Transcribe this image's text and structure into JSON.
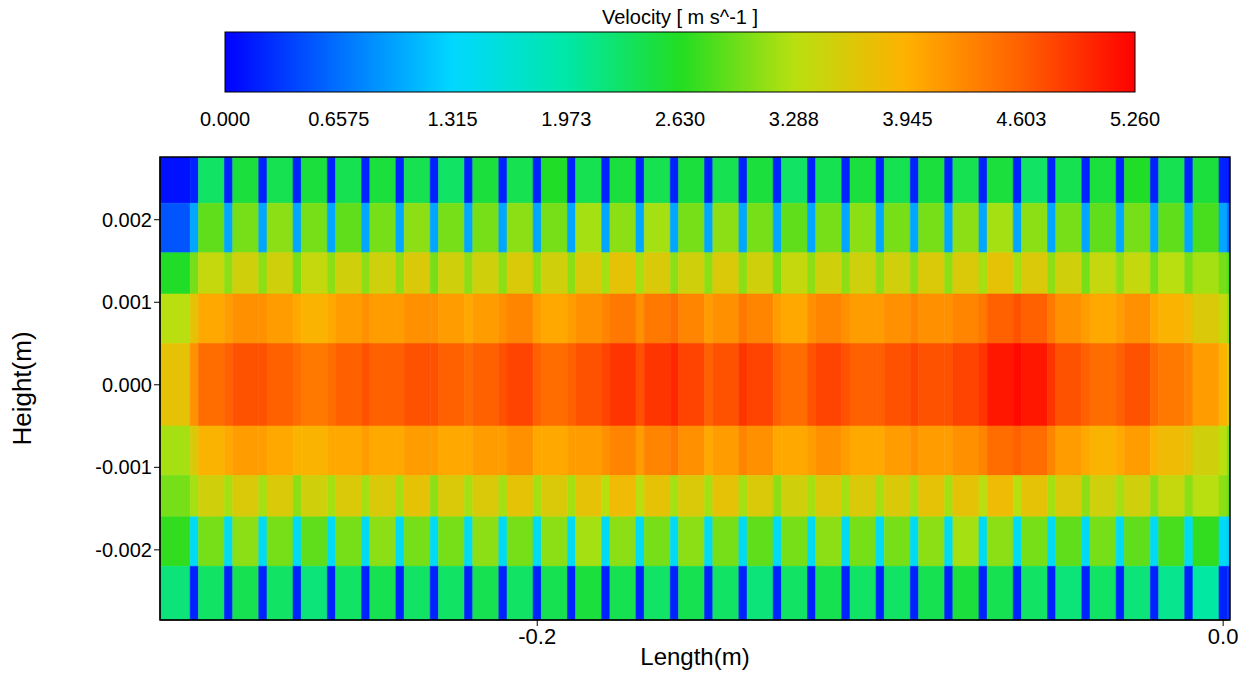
{
  "chart_data": {
    "type": "heatmap",
    "x_label": "Length(m)",
    "y_label": "Height(m)",
    "xlim": [
      -0.31,
      0.002
    ],
    "xticks": [
      -0.2,
      {
        "value": 0,
        "label": "0.0"
      }
    ],
    "ylim": [
      -0.00285,
      0.00276
    ],
    "yticks": [
      -0.002,
      -0.001,
      {
        "value": 0,
        "label": "0.000"
      },
      0.001,
      0.002
    ],
    "colorbar": {
      "title": "Velocity [ m s^-1 ]",
      "range": [
        0,
        5.26
      ],
      "ticks": [
        {
          "value": 0,
          "label": "0.000"
        },
        0.6575,
        1.315,
        1.973,
        {
          "value": 2.63,
          "label": "2.630"
        },
        3.288,
        3.945,
        4.603,
        {
          "value": 5.26,
          "label": "5.260"
        }
      ],
      "colors": [
        "#0000ff",
        "#0070ff",
        "#00d8ff",
        "#00e8a8",
        "#22dd22",
        "#b8e010",
        "#ffb000",
        "#ff6000",
        "#ff0000"
      ]
    },
    "x_edges": [
      -0.31,
      -0.3012,
      -0.2988,
      -0.2912,
      -0.2888,
      -0.2812,
      -0.2788,
      -0.2712,
      -0.2688,
      -0.2612,
      -0.2588,
      -0.2512,
      -0.2488,
      -0.2412,
      -0.2388,
      -0.2312,
      -0.2288,
      -0.2212,
      -0.2188,
      -0.2112,
      -0.2088,
      -0.2012,
      -0.1988,
      -0.1912,
      -0.1888,
      -0.1812,
      -0.1788,
      -0.1712,
      -0.1688,
      -0.1612,
      -0.1588,
      -0.1512,
      -0.1488,
      -0.1412,
      -0.1388,
      -0.1312,
      -0.1288,
      -0.1212,
      -0.1188,
      -0.1112,
      -0.1088,
      -0.1012,
      -0.0988,
      -0.0912,
      -0.0888,
      -0.0812,
      -0.0788,
      -0.0712,
      -0.0688,
      -0.0612,
      -0.0588,
      -0.0512,
      -0.0488,
      -0.0412,
      -0.0388,
      -0.0312,
      -0.0288,
      -0.0212,
      -0.0188,
      -0.0112,
      -0.0088,
      -0.0012,
      0.0012,
      0.002
    ],
    "y_edges": [
      0.00276,
      0.0022,
      0.0016,
      0.0011,
      0.0005,
      -0.0005,
      -0.0011,
      -0.0016,
      -0.0022,
      -0.00285
    ],
    "values": [
      [
        0.1,
        0.2,
        2.3,
        0.2,
        2.5,
        0.2,
        2.4,
        0.2,
        2.5,
        0.2,
        2.4,
        0.2,
        2.5,
        0.2,
        2.4,
        0.2,
        2.3,
        0.2,
        2.5,
        0.2,
        2.4,
        0.2,
        2.6,
        0.2,
        2.4,
        0.2,
        2.5,
        0.2,
        2.4,
        0.2,
        2.5,
        0.2,
        2.4,
        0.2,
        2.5,
        0.2,
        2.3,
        0.2,
        2.4,
        0.2,
        2.5,
        0.2,
        2.4,
        0.2,
        2.5,
        0.2,
        2.4,
        0.2,
        2.5,
        0.2,
        2.3,
        0.2,
        2.4,
        0.2,
        2.5,
        0.2,
        2.6,
        0.2,
        2.4,
        0.2,
        2.5,
        0.2,
        0.1
      ],
      [
        0.5,
        1.0,
        2.9,
        1.0,
        3.0,
        1.0,
        3.1,
        1.0,
        3.0,
        1.0,
        2.9,
        1.0,
        3.0,
        1.0,
        3.1,
        1.0,
        3.0,
        1.0,
        3.0,
        1.0,
        3.1,
        1.0,
        3.0,
        1.0,
        3.2,
        1.0,
        3.1,
        1.0,
        3.2,
        1.0,
        3.0,
        1.0,
        3.1,
        1.0,
        3.0,
        1.0,
        2.9,
        1.0,
        3.0,
        1.0,
        3.1,
        1.0,
        3.0,
        1.0,
        3.0,
        1.0,
        3.1,
        1.0,
        3.2,
        1.0,
        3.1,
        1.0,
        3.0,
        1.0,
        2.9,
        1.0,
        3.0,
        1.0,
        2.9,
        1.0,
        2.8,
        1.0,
        0.6
      ],
      [
        2.6,
        3.0,
        3.4,
        3.1,
        3.5,
        3.1,
        3.5,
        3.0,
        3.4,
        3.1,
        3.5,
        3.1,
        3.5,
        3.1,
        3.6,
        3.0,
        3.5,
        3.1,
        3.5,
        3.1,
        3.6,
        3.1,
        3.5,
        3.1,
        3.6,
        3.2,
        3.7,
        3.2,
        3.6,
        3.1,
        3.5,
        3.1,
        3.6,
        3.1,
        3.5,
        3.0,
        3.4,
        3.1,
        3.5,
        3.1,
        3.5,
        3.1,
        3.5,
        3.1,
        3.6,
        3.1,
        3.6,
        3.2,
        3.7,
        3.2,
        3.6,
        3.1,
        3.5,
        3.0,
        3.4,
        3.1,
        3.4,
        3.0,
        3.3,
        3.0,
        3.2,
        3.0,
        2.8
      ],
      [
        3.3,
        3.7,
        4.0,
        4.1,
        4.2,
        4.2,
        4.1,
        4.0,
        3.9,
        4.0,
        4.1,
        4.2,
        4.1,
        4.1,
        4.2,
        4.2,
        4.1,
        4.0,
        4.1,
        4.2,
        4.3,
        4.1,
        4.0,
        4.1,
        4.2,
        4.3,
        4.4,
        4.2,
        4.4,
        4.5,
        4.3,
        4.1,
        4.2,
        4.4,
        4.3,
        4.1,
        4.0,
        4.2,
        4.3,
        4.2,
        4.1,
        4.1,
        4.2,
        4.3,
        4.2,
        4.2,
        4.3,
        4.4,
        4.6,
        4.7,
        4.6,
        4.4,
        4.2,
        4.1,
        4.0,
        4.1,
        4.2,
        4.0,
        3.9,
        3.8,
        3.6,
        3.4,
        3.1
      ],
      [
        3.7,
        4.2,
        4.5,
        4.6,
        4.7,
        4.7,
        4.6,
        4.5,
        4.4,
        4.5,
        4.6,
        4.7,
        4.6,
        4.6,
        4.7,
        4.7,
        4.6,
        4.5,
        4.6,
        4.7,
        4.8,
        4.6,
        4.5,
        4.6,
        4.7,
        4.8,
        4.9,
        4.7,
        4.9,
        5.0,
        4.8,
        4.6,
        4.7,
        4.9,
        4.8,
        4.6,
        4.5,
        4.7,
        4.8,
        4.7,
        4.6,
        4.6,
        4.7,
        4.8,
        4.7,
        4.7,
        4.8,
        4.9,
        5.1,
        5.2,
        5.1,
        4.9,
        4.7,
        4.6,
        4.5,
        4.6,
        4.7,
        4.5,
        4.4,
        4.3,
        4.1,
        3.9,
        3.6
      ],
      [
        3.2,
        3.6,
        3.9,
        4.0,
        4.1,
        4.1,
        4.0,
        3.9,
        3.9,
        4.0,
        4.0,
        4.1,
        4.0,
        4.0,
        4.1,
        4.1,
        4.0,
        4.0,
        4.1,
        4.1,
        4.2,
        4.0,
        4.0,
        4.1,
        4.1,
        4.2,
        4.3,
        4.1,
        4.3,
        4.4,
        4.2,
        4.0,
        4.1,
        4.3,
        4.2,
        4.0,
        4.0,
        4.1,
        4.2,
        4.1,
        4.0,
        4.0,
        4.1,
        4.2,
        4.1,
        4.1,
        4.2,
        4.3,
        4.5,
        4.6,
        4.5,
        4.3,
        4.1,
        4.0,
        3.9,
        4.0,
        4.1,
        3.9,
        3.8,
        3.7,
        3.5,
        3.3,
        3.0
      ],
      [
        3.0,
        3.2,
        3.5,
        3.2,
        3.6,
        3.2,
        3.6,
        3.1,
        3.5,
        3.2,
        3.6,
        3.2,
        3.6,
        3.2,
        3.7,
        3.1,
        3.6,
        3.2,
        3.6,
        3.2,
        3.7,
        3.2,
        3.6,
        3.2,
        3.7,
        3.3,
        3.8,
        3.3,
        3.7,
        3.2,
        3.6,
        3.2,
        3.7,
        3.2,
        3.6,
        3.1,
        3.5,
        3.2,
        3.6,
        3.2,
        3.6,
        3.2,
        3.6,
        3.2,
        3.7,
        3.2,
        3.7,
        3.3,
        3.8,
        3.3,
        3.7,
        3.2,
        3.6,
        3.1,
        3.5,
        3.2,
        3.5,
        3.1,
        3.4,
        3.1,
        3.3,
        3.1,
        2.9
      ],
      [
        2.7,
        1.4,
        3.0,
        1.4,
        3.1,
        1.4,
        3.0,
        1.4,
        2.9,
        1.4,
        3.0,
        1.4,
        3.1,
        1.4,
        3.0,
        1.4,
        3.0,
        1.4,
        3.1,
        1.4,
        3.0,
        1.4,
        3.1,
        1.4,
        3.2,
        1.4,
        3.1,
        1.4,
        3.0,
        1.4,
        3.1,
        1.4,
        3.0,
        1.4,
        2.9,
        1.4,
        3.0,
        1.4,
        3.1,
        1.4,
        3.0,
        1.4,
        3.0,
        1.4,
        3.1,
        1.4,
        3.2,
        1.4,
        3.1,
        1.4,
        3.0,
        1.4,
        2.9,
        1.4,
        3.0,
        1.4,
        2.9,
        1.4,
        2.8,
        1.4,
        2.7,
        1.4,
        1.2
      ],
      [
        2.2,
        0.2,
        2.3,
        0.2,
        2.4,
        0.2,
        2.3,
        0.2,
        2.2,
        0.2,
        2.3,
        0.2,
        2.4,
        0.2,
        2.3,
        0.2,
        2.3,
        0.2,
        2.4,
        0.2,
        2.3,
        0.2,
        2.4,
        0.2,
        2.5,
        0.2,
        2.4,
        0.2,
        2.3,
        0.2,
        2.4,
        0.2,
        2.3,
        0.2,
        2.2,
        0.2,
        2.3,
        0.2,
        2.4,
        0.2,
        2.3,
        0.2,
        2.3,
        0.2,
        2.4,
        0.2,
        2.5,
        0.2,
        2.4,
        0.2,
        2.3,
        0.2,
        2.2,
        0.2,
        2.3,
        0.2,
        2.2,
        0.2,
        2.1,
        0.2,
        2.0,
        0.2,
        0.3
      ]
    ]
  }
}
